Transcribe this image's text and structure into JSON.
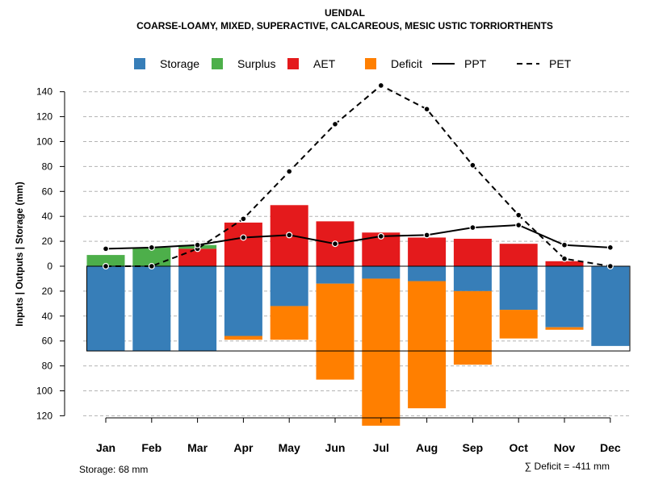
{
  "chart_data": {
    "type": "bar",
    "title": "UENDAL",
    "subtitle": "COARSE-LOAMY, MIXED, SUPERACTIVE, CALCAREOUS, MESIC USTIC TORRIORTHENTS",
    "ylabel": "Inputs | Outputs | Storage    (mm)",
    "categories": [
      "Jan",
      "Feb",
      "Mar",
      "Apr",
      "May",
      "Jun",
      "Jul",
      "Aug",
      "Sep",
      "Oct",
      "Nov",
      "Dec"
    ],
    "ylim": [
      -120,
      140
    ],
    "y_ticks": [
      140,
      120,
      100,
      80,
      60,
      40,
      20,
      0,
      -20,
      -40,
      -60,
      -80,
      -100,
      -120
    ],
    "y_tick_labels": [
      "140",
      "120",
      "100",
      "80",
      "60",
      "40",
      "20",
      "0",
      "20",
      "40",
      "60",
      "80",
      "100",
      "120"
    ],
    "grid": true,
    "legend": {
      "position": "top",
      "entries": [
        {
          "label": "Storage",
          "color": "#377EB8",
          "kind": "box"
        },
        {
          "label": "Surplus",
          "color": "#4DAF4A",
          "kind": "box"
        },
        {
          "label": "AET",
          "color": "#E41A1C",
          "kind": "box"
        },
        {
          "label": "Deficit",
          "color": "#FF7F00",
          "kind": "box"
        },
        {
          "label": "PPT",
          "color": "#000000",
          "kind": "solid"
        },
        {
          "label": "PET",
          "color": "#000000",
          "kind": "dashed"
        }
      ]
    },
    "series": [
      {
        "name": "Storage",
        "color": "#377EB8",
        "values": [
          -68,
          -68,
          -68,
          -56,
          -32,
          -14,
          -10,
          -12,
          -20,
          -35,
          -49,
          -64
        ]
      },
      {
        "name": "Surplus",
        "color": "#4DAF4A",
        "values": [
          9,
          15,
          3,
          0,
          0,
          0,
          0,
          0,
          0,
          0,
          0,
          0
        ]
      },
      {
        "name": "AET",
        "color": "#E41A1C",
        "values": [
          0,
          0,
          14,
          35,
          49,
          36,
          27,
          23,
          22,
          18,
          4,
          0
        ]
      },
      {
        "name": "Deficit",
        "color": "#FF7F00",
        "values": [
          0,
          0,
          0,
          3,
          27,
          77,
          118,
          102,
          59,
          23,
          2,
          0
        ]
      },
      {
        "name": "PPT",
        "color": "#000000",
        "line": "solid",
        "values": [
          14,
          15,
          17,
          23,
          25,
          18,
          24,
          25,
          31,
          33,
          17,
          15
        ]
      },
      {
        "name": "PET",
        "color": "#000000",
        "line": "dashed",
        "values": [
          0,
          0,
          14,
          38,
          76,
          114,
          145,
          126,
          81,
          41,
          6,
          0
        ]
      }
    ],
    "storage_capacity": 68,
    "storage_note": "Storage: 68 mm",
    "deficit_note": "∑ Deficit = -411 mm"
  }
}
